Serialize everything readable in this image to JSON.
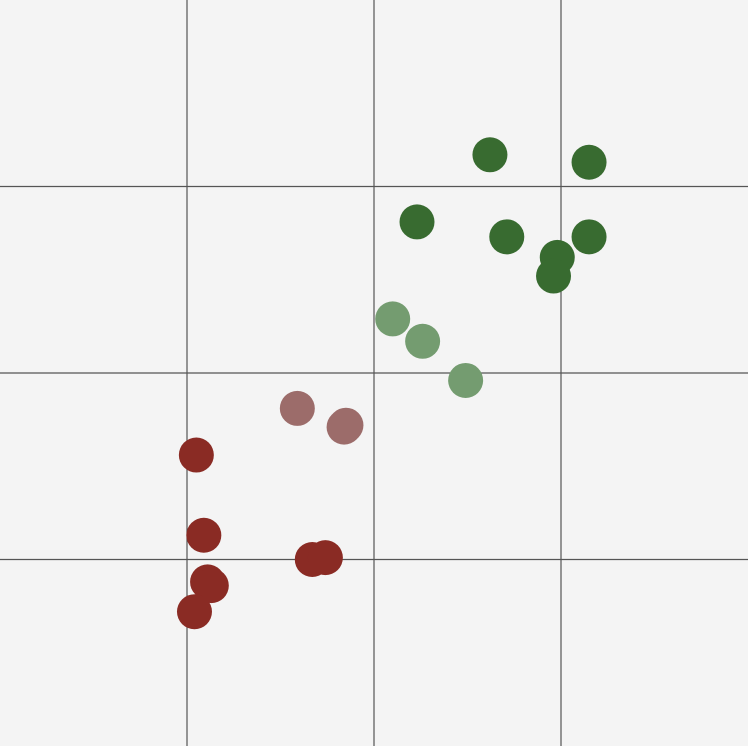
{
  "chart_data": {
    "type": "scatter",
    "title": "",
    "xlabel": "",
    "ylabel": "",
    "xlim": [
      0,
      4
    ],
    "ylim": [
      0,
      4
    ],
    "grid": true,
    "gridlines_x": [
      1,
      2,
      3
    ],
    "gridlines_y": [
      1,
      2,
      3
    ],
    "background_color": "#f4f4f4",
    "grid_color": "#555555",
    "points": [
      {
        "x": 2.62,
        "y": 3.17,
        "color": "#386b30"
      },
      {
        "x": 3.15,
        "y": 3.13,
        "color": "#386b30"
      },
      {
        "x": 2.23,
        "y": 2.81,
        "color": "#386b30"
      },
      {
        "x": 2.71,
        "y": 2.73,
        "color": "#386b30"
      },
      {
        "x": 3.15,
        "y": 2.73,
        "color": "#386b30"
      },
      {
        "x": 2.98,
        "y": 2.62,
        "color": "#386b30"
      },
      {
        "x": 2.96,
        "y": 2.52,
        "color": "#386b30"
      },
      {
        "x": 2.1,
        "y": 2.29,
        "color": "#749c70"
      },
      {
        "x": 2.26,
        "y": 2.17,
        "color": "#749c70"
      },
      {
        "x": 2.49,
        "y": 1.96,
        "color": "#749c70"
      },
      {
        "x": 1.59,
        "y": 1.81,
        "color": "#9c6c6a"
      },
      {
        "x": 1.84,
        "y": 1.71,
        "color": "#9c6c6a"
      },
      {
        "x": 1.85,
        "y": 1.72,
        "color": "#9c6c6a"
      },
      {
        "x": 1.05,
        "y": 1.56,
        "color": "#8a2b24"
      },
      {
        "x": 1.09,
        "y": 1.13,
        "color": "#8a2b24"
      },
      {
        "x": 1.67,
        "y": 1.0,
        "color": "#8a2b24"
      },
      {
        "x": 1.74,
        "y": 1.01,
        "color": "#8a2b24"
      },
      {
        "x": 1.11,
        "y": 0.88,
        "color": "#8a2b24"
      },
      {
        "x": 1.13,
        "y": 0.86,
        "color": "#8a2b24"
      },
      {
        "x": 1.04,
        "y": 0.72,
        "color": "#8a2b24"
      }
    ]
  }
}
